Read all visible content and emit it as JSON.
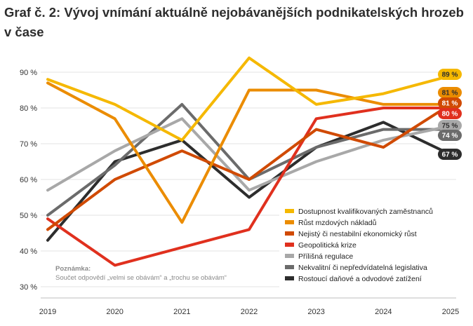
{
  "title": "Graf č. 2: Vývoj vnímání aktuálně nejobávanějších podnikatelských hrozeb v čase",
  "note": {
    "heading": "Poznámka:",
    "text": "Součet odpovědí „velmi se obávám“ a „trochu se obávám“"
  },
  "chart_data": {
    "type": "line",
    "title": "Graf č. 2: Vývoj vnímání aktuálně nejobávanějších podnikatelských hrozeb v čase",
    "x": [
      "2019",
      "2020",
      "2021",
      "2022",
      "2023",
      "2024",
      "2025"
    ],
    "ylim": [
      30,
      90
    ],
    "yticks": [
      "30 %",
      "40 %",
      "50 %",
      "60 %",
      "70 %",
      "80 %",
      "90 %"
    ],
    "grid": true,
    "legend_position": "bottom-right",
    "series": [
      {
        "name": "Dostupnost kvalifikovaných zaměstnanců",
        "color": "#f5b800",
        "values": [
          88,
          81,
          71,
          94,
          81,
          84,
          89
        ],
        "end_label": "89 %"
      },
      {
        "name": "Růst mzdových nákladů",
        "color": "#eb8c00",
        "values": [
          87,
          77,
          48,
          85,
          85,
          81,
          81
        ],
        "end_label": "81 %"
      },
      {
        "name": "Nejistý či nestabilní ekonomický růst",
        "color": "#d04a02",
        "values": [
          46,
          60,
          68,
          60,
          74,
          69,
          81
        ],
        "end_label": "81 %"
      },
      {
        "name": "Geopolitická krize",
        "color": "#e0301e",
        "values": [
          49,
          36,
          41,
          46,
          77,
          80,
          80
        ],
        "end_label": "80 %"
      },
      {
        "name": "Přílišná regulace",
        "color": "#a8a8a8",
        "values": [
          57,
          68,
          77,
          57,
          65,
          71,
          75
        ],
        "end_label": "75 %"
      },
      {
        "name": "Nekvalitní či nepředvídatelná legislativa",
        "color": "#6b6b6b",
        "values": [
          50,
          64,
          81,
          60,
          69,
          74,
          74
        ],
        "end_label": "74 %"
      },
      {
        "name": "Rostoucí daňové a odvodové zatížení",
        "color": "#2d2d2d",
        "values": [
          43,
          65,
          71,
          55,
          69,
          76,
          67
        ],
        "end_label": "67 %"
      }
    ]
  }
}
